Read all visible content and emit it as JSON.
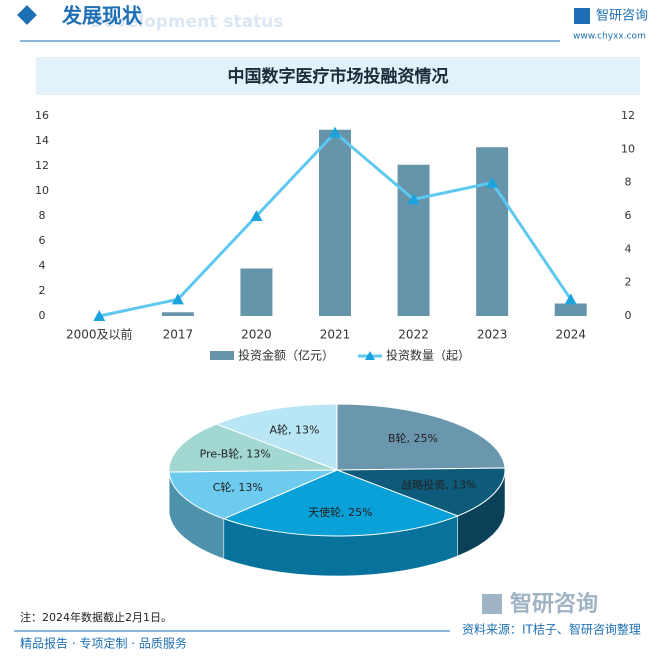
{
  "header": {
    "title": "发展现状",
    "subtitle": "Development status",
    "logo": "智研咨询",
    "url": "www.chyxx.com"
  },
  "chart_data": [
    {
      "type": "bar",
      "title": "中国数字医疗市场投融资情况",
      "categories": [
        "2000及以前",
        "2017",
        "2020",
        "2021",
        "2022",
        "2023",
        "2024"
      ],
      "series": [
        {
          "name": "投资金额（亿元）",
          "type": "bar",
          "color": "#6694ab",
          "values": [
            0,
            0.3,
            3.8,
            14.9,
            12.1,
            13.5,
            1.0
          ]
        },
        {
          "name": "投资数量（起）",
          "type": "line",
          "axis": "y2",
          "color": "#5ec8f0",
          "values": [
            0,
            1,
            6,
            11,
            7,
            8,
            1
          ]
        }
      ],
      "ylim": [
        0,
        16
      ],
      "yticks": [
        0,
        2,
        4,
        6,
        8,
        10,
        12,
        14,
        16
      ],
      "y2lim": [
        0,
        12
      ],
      "y2ticks": [
        0,
        2,
        4,
        6,
        8,
        10,
        12
      ]
    },
    {
      "type": "pie",
      "values": [
        25,
        13,
        25,
        13,
        13,
        13
      ],
      "value_labels": [
        "B轮, 25%",
        "战略投资, 13%",
        "天使轮, 25%",
        "C轮, 13%",
        "Pre-B轮, 13%",
        "A轮, 13%"
      ],
      "colors": [
        "#6a97ae",
        "#0e5a7a",
        "#0aa0d8",
        "#6dcbef",
        "#a3d8d2",
        "#b8e6f5"
      ]
    }
  ],
  "note": "注：2024年数据截止2月1日。",
  "footer": {
    "slogan": "精品报告 · 专项定制 · 品质服务",
    "source": "资料来源：IT桔子、智研咨询整理",
    "logo": "智研咨询"
  }
}
